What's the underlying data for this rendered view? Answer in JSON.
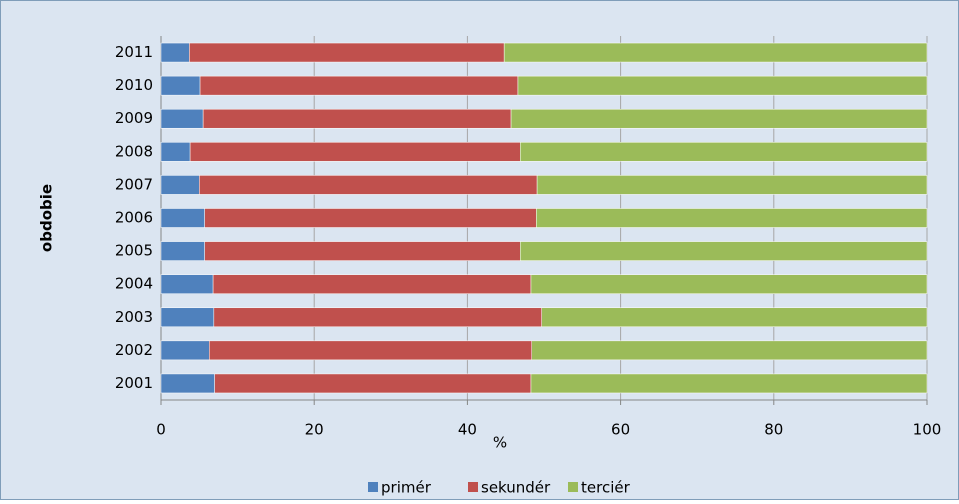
{
  "chart_data": {
    "type": "stacked_barh",
    "y_label": "obdobie",
    "x_label": "%",
    "categories": [
      "2001",
      "2002",
      "2003",
      "2004",
      "2005",
      "2006",
      "2007",
      "2008",
      "2009",
      "2010",
      "2011"
    ],
    "series": [
      {
        "name": "primér",
        "color": "#4f81bd",
        "values": [
          7.0,
          6.3,
          6.9,
          6.8,
          5.7,
          5.7,
          5.0,
          3.8,
          5.5,
          5.1,
          3.7
        ]
      },
      {
        "name": "sekundér",
        "color": "#c0504d",
        "values": [
          41.3,
          42.1,
          42.8,
          41.5,
          41.2,
          43.3,
          44.1,
          43.1,
          40.2,
          41.5,
          41.1
        ]
      },
      {
        "name": "terciér",
        "color": "#9bbb59",
        "values": [
          51.7,
          51.6,
          50.3,
          51.7,
          53.1,
          51.0,
          50.9,
          53.1,
          54.3,
          53.4,
          55.2
        ]
      }
    ],
    "xlim": [
      0,
      100
    ],
    "xticks": [
      0,
      20,
      40,
      60,
      80,
      100
    ],
    "grid": true,
    "legend": "bottom"
  }
}
